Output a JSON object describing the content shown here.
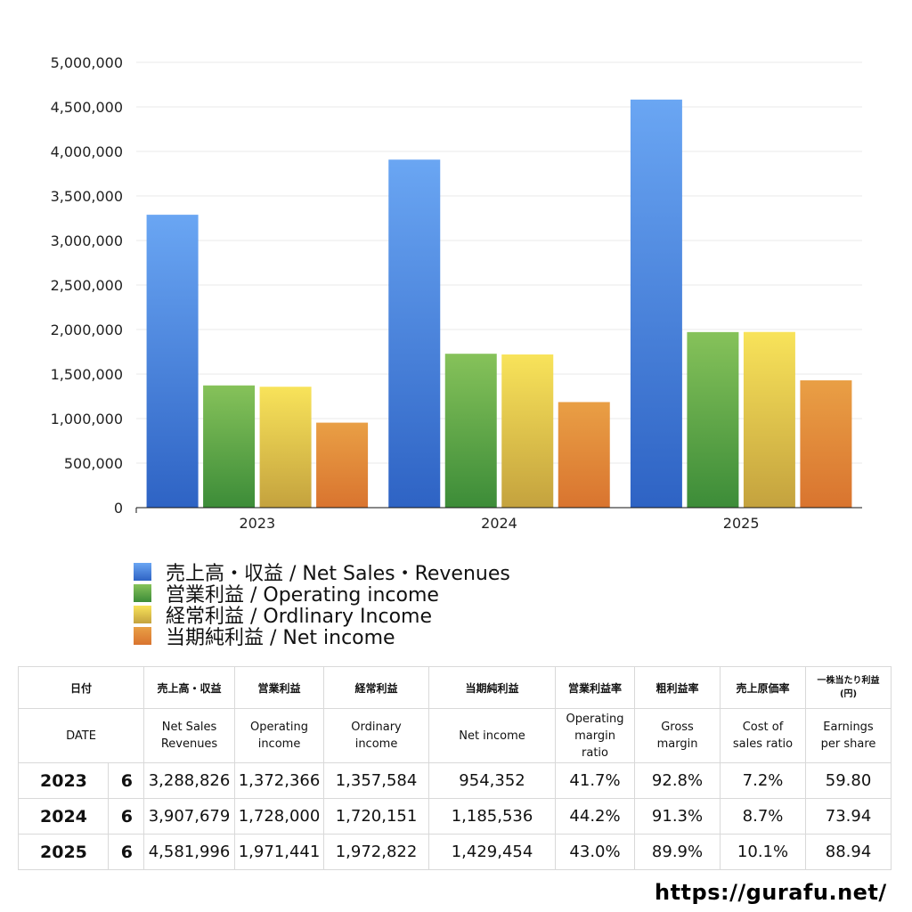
{
  "chart_data": {
    "type": "bar",
    "categories": [
      "2023",
      "2024",
      "2025"
    ],
    "ylim": [
      0,
      5000000
    ],
    "ytick_labels": [
      "0",
      "500,000",
      "1,000,000",
      "1,500,000",
      "2,000,000",
      "2,500,000",
      "3,000,000",
      "3,500,000",
      "4,000,000",
      "4,500,000",
      "5,000,000"
    ],
    "series": [
      {
        "name": "売上高・収益 / Net Sales・Revenues",
        "values": [
          3288826,
          3907679,
          4581996
        ],
        "color_top": "#6aa6f3",
        "color_bottom": "#2e63c4"
      },
      {
        "name": "営業利益 / Operating income",
        "values": [
          1372366,
          1728000,
          1971441
        ],
        "color_top": "#86c25a",
        "color_bottom": "#3c8c38"
      },
      {
        "name": "経常利益 / Ordlinary Income",
        "values": [
          1357584,
          1720151,
          1972822
        ],
        "color_top": "#f8e35a",
        "color_bottom": "#c4a23e"
      },
      {
        "name": "当期純利益 / Net income",
        "values": [
          954352,
          1185536,
          1429454
        ],
        "color_top": "#e99f45",
        "color_bottom": "#d9742f"
      }
    ],
    "legend_position": "bottom"
  },
  "table": {
    "header_ja": [
      "日付",
      "売上高・収益",
      "営業利益",
      "経常利益",
      "当期純利益",
      "営業利益率",
      "粗利益率",
      "売上原価率",
      "一株当たり利益",
      "(円)"
    ],
    "header_en": {
      "date": "DATE",
      "sales": [
        "Net Sales",
        "Revenues"
      ],
      "operating": [
        "Operating",
        "income"
      ],
      "ordinary": [
        "Ordinary",
        "income"
      ],
      "net": "Net income",
      "op_margin": [
        "Operating",
        "margin",
        "ratio"
      ],
      "gross": [
        "Gross",
        "margin"
      ],
      "cost": [
        "Cost of",
        "sales ratio"
      ],
      "eps": [
        "Earnings",
        "per share"
      ]
    },
    "rows": [
      {
        "year": "2023",
        "month": "6",
        "sales": "3,288,826",
        "operating": "1,372,366",
        "ordinary": "1,357,584",
        "net": "954,352",
        "op_margin": "41.7%",
        "gross": "92.8%",
        "cost": "7.2%",
        "eps": "59.80"
      },
      {
        "year": "2024",
        "month": "6",
        "sales": "3,907,679",
        "operating": "1,728,000",
        "ordinary": "1,720,151",
        "net": "1,185,536",
        "op_margin": "44.2%",
        "gross": "91.3%",
        "cost": "8.7%",
        "eps": "73.94"
      },
      {
        "year": "2025",
        "month": "6",
        "sales": "4,581,996",
        "operating": "1,971,441",
        "ordinary": "1,972,822",
        "net": "1,429,454",
        "op_margin": "43.0%",
        "gross": "89.9%",
        "cost": "10.1%",
        "eps": "88.94"
      }
    ]
  },
  "footer": {
    "url": "https://gurafu.net/"
  }
}
